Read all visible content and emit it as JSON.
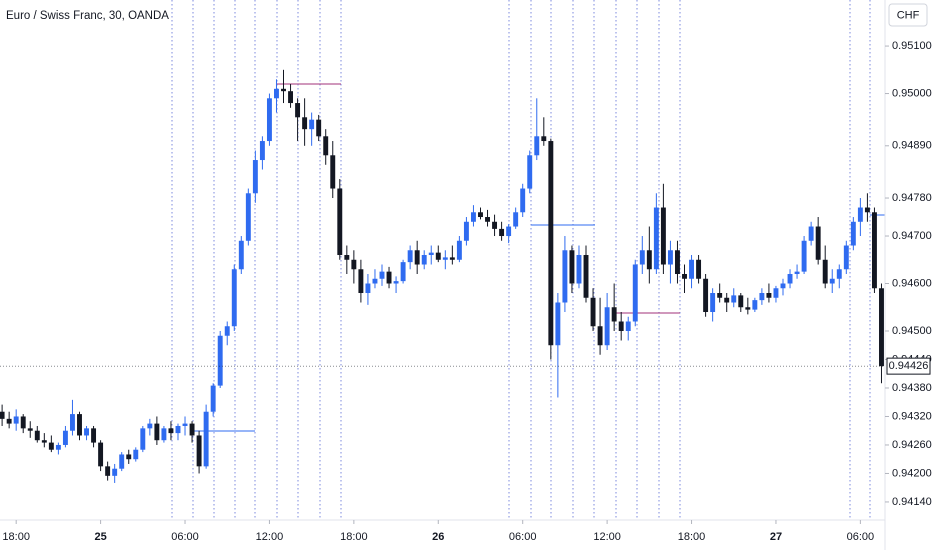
{
  "chart_data": {
    "type": "candlestick",
    "title": "Euro / Swiss Franc, 30, OANDA",
    "currency": "CHF",
    "last_price": 0.94426,
    "up_color": "#2f6bf0",
    "down_color": "#131722",
    "xlim": [
      -0.3,
      125.5
    ],
    "ylim": [
      0.94102,
      0.95197
    ],
    "xticks": [
      {
        "value": 2,
        "label": "18:00"
      },
      {
        "value": 14,
        "label": "25"
      },
      {
        "value": 26,
        "label": "06:00"
      },
      {
        "value": 38,
        "label": "12:00"
      },
      {
        "value": 50,
        "label": "18:00"
      },
      {
        "value": 62,
        "label": "26"
      },
      {
        "value": 74,
        "label": "06:00"
      },
      {
        "value": 86,
        "label": "12:00"
      },
      {
        "value": 98,
        "label": "18:00"
      },
      {
        "value": 110,
        "label": "27"
      },
      {
        "value": 122,
        "label": "06:00"
      }
    ],
    "yticks": [
      {
        "value": 0.951,
        "label": "0.95100"
      },
      {
        "value": 0.95,
        "label": "0.95000"
      },
      {
        "value": 0.9489,
        "label": "0.94890"
      },
      {
        "value": 0.9478,
        "label": "0.94780"
      },
      {
        "value": 0.947,
        "label": "0.94700"
      },
      {
        "value": 0.946,
        "label": "0.94600"
      },
      {
        "value": 0.945,
        "label": "0.94500"
      },
      {
        "value": 0.9444,
        "label": "0.94440"
      },
      {
        "value": 0.9438,
        "label": "0.94380"
      },
      {
        "value": 0.9432,
        "label": "0.94320"
      },
      {
        "value": 0.9426,
        "label": "0.94260"
      },
      {
        "value": 0.942,
        "label": "0.94200"
      },
      {
        "value": 0.9414,
        "label": "0.94140"
      }
    ],
    "open": [
      0.9433,
      0.94315,
      0.94305,
      0.9432,
      0.94295,
      0.9429,
      0.9427,
      0.94265,
      0.9425,
      0.9426,
      0.9429,
      0.94325,
      0.9428,
      0.94295,
      0.94265,
      0.94215,
      0.94195,
      0.9421,
      0.9424,
      0.9423,
      0.9425,
      0.94295,
      0.94305,
      0.9427,
      0.94295,
      0.94285,
      0.943,
      0.94305,
      0.9428,
      0.94215,
      0.9433,
      0.94385,
      0.9449,
      0.9451,
      0.9463,
      0.9469,
      0.9479,
      0.9486,
      0.949,
      0.9499,
      0.9501,
      0.95005,
      0.9498,
      0.9495,
      0.94925,
      0.94945,
      0.9491,
      0.9487,
      0.948,
      0.9466,
      0.9465,
      0.9463,
      0.9458,
      0.946,
      0.9461,
      0.94625,
      0.946,
      0.94605,
      0.94645,
      0.9467,
      0.9464,
      0.9466,
      0.94665,
      0.9465,
      0.94655,
      0.9465,
      0.9469,
      0.9473,
      0.9475,
      0.9474,
      0.9473,
      0.94715,
      0.947,
      0.9472,
      0.9475,
      0.948,
      0.9487,
      0.9491,
      0.949,
      0.9447,
      0.9456,
      0.9467,
      0.946,
      0.9466,
      0.9457,
      0.9451,
      0.9447,
      0.9455,
      0.9452,
      0.945,
      0.9452,
      0.9464,
      0.9467,
      0.9463,
      0.9476,
      0.9464,
      0.9467,
      0.9462,
      0.9461,
      0.9465,
      0.9461,
      0.9454,
      0.9458,
      0.9457,
      0.9456,
      0.94575,
      0.9455,
      0.94545,
      0.94565,
      0.9458,
      0.9457,
      0.9459,
      0.946,
      0.9462,
      0.94625,
      0.9469,
      0.9472,
      0.9465,
      0.946,
      0.9461,
      0.9463,
      0.9468,
      0.9473,
      0.9476,
      0.9475,
      0.9459
    ],
    "high": [
      0.94345,
      0.9433,
      0.94335,
      0.94325,
      0.9431,
      0.943,
      0.94285,
      0.9428,
      0.94265,
      0.943,
      0.94355,
      0.9433,
      0.943,
      0.943,
      0.9427,
      0.94225,
      0.9422,
      0.94245,
      0.9425,
      0.94255,
      0.943,
      0.94315,
      0.9432,
      0.943,
      0.9431,
      0.94305,
      0.9432,
      0.9431,
      0.9429,
      0.94345,
      0.9439,
      0.945,
      0.9452,
      0.9464,
      0.947,
      0.948,
      0.9488,
      0.9491,
      0.95,
      0.9503,
      0.9505,
      0.9502,
      0.9499,
      0.9499,
      0.9496,
      0.94955,
      0.94925,
      0.949,
      0.9482,
      0.9468,
      0.9467,
      0.9465,
      0.9462,
      0.9463,
      0.9464,
      0.94635,
      0.94615,
      0.9465,
      0.9468,
      0.9469,
      0.9467,
      0.9468,
      0.9468,
      0.9467,
      0.9468,
      0.947,
      0.9474,
      0.94765,
      0.9476,
      0.94755,
      0.94745,
      0.9473,
      0.94725,
      0.9476,
      0.9481,
      0.9488,
      0.9499,
      0.9495,
      0.94905,
      0.9458,
      0.947,
      0.9468,
      0.9468,
      0.9468,
      0.9459,
      0.9457,
      0.9458,
      0.946,
      0.9454,
      0.9453,
      0.9465,
      0.947,
      0.9472,
      0.9479,
      0.9481,
      0.9469,
      0.9469,
      0.9464,
      0.9466,
      0.9466,
      0.9462,
      0.9459,
      0.946,
      0.9458,
      0.9459,
      0.9458,
      0.9457,
      0.9457,
      0.9459,
      0.946,
      0.94595,
      0.9461,
      0.9463,
      0.9464,
      0.947,
      0.9473,
      0.9474,
      0.9468,
      0.9463,
      0.9464,
      0.9469,
      0.9474,
      0.9478,
      0.9479,
      0.9476,
      0.946
    ],
    "low": [
      0.943,
      0.94295,
      0.9429,
      0.94285,
      0.94275,
      0.94265,
      0.94255,
      0.94245,
      0.9424,
      0.94255,
      0.9428,
      0.9427,
      0.9427,
      0.94255,
      0.94205,
      0.94185,
      0.9418,
      0.94205,
      0.9422,
      0.94225,
      0.94245,
      0.9428,
      0.9426,
      0.94265,
      0.9427,
      0.9427,
      0.9428,
      0.94265,
      0.942,
      0.9421,
      0.9432,
      0.9438,
      0.9447,
      0.945,
      0.9462,
      0.9468,
      0.9477,
      0.9484,
      0.9489,
      0.9496,
      0.9498,
      0.9497,
      0.949,
      0.9489,
      0.9489,
      0.949,
      0.9485,
      0.9478,
      0.9465,
      0.9462,
      0.946,
      0.9456,
      0.94555,
      0.9459,
      0.94595,
      0.9459,
      0.9458,
      0.946,
      0.9463,
      0.9462,
      0.9463,
      0.9464,
      0.94645,
      0.9463,
      0.9464,
      0.94645,
      0.9468,
      0.9472,
      0.94735,
      0.9472,
      0.947,
      0.9469,
      0.94685,
      0.94715,
      0.9474,
      0.9479,
      0.9486,
      0.9489,
      0.9444,
      0.9436,
      0.9454,
      0.9458,
      0.9459,
      0.9456,
      0.945,
      0.9445,
      0.9446,
      0.945,
      0.9448,
      0.9448,
      0.9451,
      0.9462,
      0.946,
      0.9462,
      0.9462,
      0.946,
      0.946,
      0.9458,
      0.9459,
      0.946,
      0.9453,
      0.9452,
      0.9456,
      0.9454,
      0.9455,
      0.9454,
      0.94535,
      0.9454,
      0.94555,
      0.9456,
      0.9456,
      0.94575,
      0.9459,
      0.9461,
      0.9462,
      0.9468,
      0.9464,
      0.9459,
      0.9458,
      0.9459,
      0.9462,
      0.9467,
      0.947,
      0.9473,
      0.9458,
      0.9439
    ],
    "close": [
      0.94315,
      0.94305,
      0.9432,
      0.94295,
      0.9429,
      0.9427,
      0.94265,
      0.9425,
      0.9426,
      0.9429,
      0.94325,
      0.9428,
      0.94295,
      0.94265,
      0.94215,
      0.94195,
      0.9421,
      0.9424,
      0.9423,
      0.9425,
      0.94295,
      0.94305,
      0.9427,
      0.94295,
      0.94285,
      0.943,
      0.94305,
      0.9428,
      0.94215,
      0.9433,
      0.94385,
      0.9449,
      0.9451,
      0.9463,
      0.9469,
      0.9479,
      0.9486,
      0.949,
      0.9499,
      0.9501,
      0.95005,
      0.9498,
      0.9495,
      0.94925,
      0.94945,
      0.9491,
      0.9487,
      0.948,
      0.9466,
      0.9465,
      0.9463,
      0.9458,
      0.946,
      0.9461,
      0.94625,
      0.946,
      0.94605,
      0.94645,
      0.9467,
      0.9464,
      0.9466,
      0.94665,
      0.9465,
      0.94655,
      0.9465,
      0.9469,
      0.9473,
      0.9475,
      0.9474,
      0.9473,
      0.94715,
      0.947,
      0.9472,
      0.9475,
      0.948,
      0.9487,
      0.9491,
      0.949,
      0.9447,
      0.9456,
      0.9467,
      0.946,
      0.9466,
      0.9457,
      0.9451,
      0.9447,
      0.9455,
      0.9452,
      0.945,
      0.9452,
      0.9464,
      0.9467,
      0.9463,
      0.9476,
      0.9464,
      0.9467,
      0.9462,
      0.9461,
      0.9465,
      0.9461,
      0.9454,
      0.9458,
      0.9457,
      0.9456,
      0.94575,
      0.9455,
      0.94545,
      0.94565,
      0.9458,
      0.9457,
      0.9459,
      0.946,
      0.9462,
      0.94625,
      0.9469,
      0.9472,
      0.9465,
      0.946,
      0.9461,
      0.9463,
      0.9468,
      0.9473,
      0.9476,
      0.9475,
      0.9459,
      0.94426
    ]
  }
}
